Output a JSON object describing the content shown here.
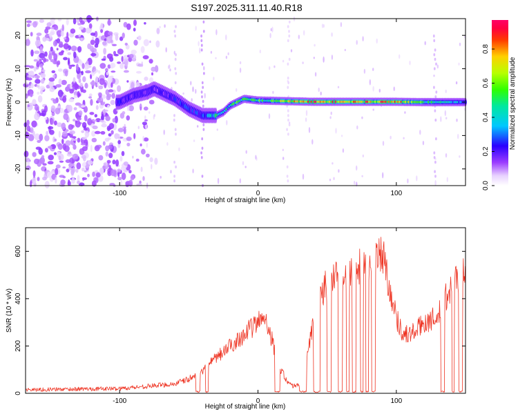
{
  "figure": {
    "title": "S197.2025.311.11.40.R18"
  },
  "chart_data": [
    {
      "type": "heatmap",
      "title": "S197.2025.311.11.40.R18",
      "xlabel": "Height of straight line (km)",
      "ylabel": "Frequency (Hz)",
      "xlim": [
        -168,
        150
      ],
      "ylim": [
        -25,
        25
      ],
      "xticks": [
        -100,
        0,
        100
      ],
      "yticks": [
        -20,
        -10,
        0,
        10,
        20
      ],
      "colorbar": {
        "label": "Normalized spectral amplitude",
        "range": [
          0,
          0.97
        ],
        "ticks": [
          0.0,
          0.2,
          0.4,
          0.6,
          0.8
        ],
        "colormap": "rainbow (white-violet-blue-cyan-green-yellow-red-magenta)"
      },
      "ridge": {
        "description": "Dominant frequency track of the signal",
        "x": [
          -100,
          -90,
          -80,
          -75,
          -60,
          -50,
          -40,
          -30,
          -25,
          -20,
          -15,
          -10,
          0,
          20,
          40,
          60,
          80,
          100,
          120,
          140,
          150
        ],
        "y": [
          0,
          2,
          3,
          4,
          1,
          -2,
          -4,
          -4,
          -3,
          -1,
          0,
          1,
          0.5,
          0.3,
          0.1,
          0.1,
          0.1,
          0.1,
          0,
          0,
          0
        ],
        "peak_amplitude": [
          0.25,
          0.22,
          0.2,
          0.2,
          0.25,
          0.28,
          0.3,
          0.55,
          0.55,
          0.5,
          0.6,
          0.55,
          0.6,
          0.75,
          0.92,
          0.88,
          0.85,
          0.95,
          0.55,
          0.45,
          0.4
        ]
      },
      "noise_region": {
        "x": [
          -168,
          -100
        ],
        "description": "broadband noise speckle across all frequencies"
      }
    },
    {
      "type": "line",
      "xlabel": "Height of straight line (km)",
      "ylabel": "SNR (10 * v/v)",
      "xlim": [
        -168,
        150
      ],
      "ylim": [
        0,
        700
      ],
      "xticks": [
        -100,
        0,
        100
      ],
      "yticks": [
        0,
        200,
        400,
        600
      ],
      "color": "#ee3322",
      "envelope": {
        "x": [
          -168,
          -130,
          -100,
          -80,
          -60,
          -50,
          -40,
          -35,
          -30,
          -20,
          -10,
          0,
          5,
          10,
          15,
          20,
          25,
          30,
          35,
          40,
          45,
          50,
          55,
          60,
          65,
          70,
          75,
          80,
          85,
          90,
          95,
          100,
          105,
          110,
          115,
          120,
          125,
          130,
          135,
          140,
          145,
          150
        ],
        "y": [
          15,
          18,
          20,
          30,
          40,
          60,
          90,
          120,
          150,
          200,
          250,
          300,
          330,
          230,
          120,
          60,
          30,
          40,
          130,
          300,
          420,
          460,
          480,
          500,
          510,
          520,
          540,
          550,
          570,
          600,
          450,
          320,
          250,
          250,
          270,
          300,
          310,
          320,
          400,
          450,
          500,
          520
        ]
      },
      "dropouts": [
        [
          -45,
          -42
        ],
        [
          -38,
          -36
        ],
        [
          12,
          16
        ],
        [
          30,
          35
        ],
        [
          40,
          45
        ],
        [
          50,
          53
        ],
        [
          58,
          61
        ],
        [
          64,
          66
        ],
        [
          68,
          71
        ],
        [
          74,
          76
        ],
        [
          78,
          80
        ],
        [
          82,
          85
        ],
        [
          132,
          135
        ],
        [
          140,
          142
        ],
        [
          145,
          148
        ]
      ]
    }
  ]
}
